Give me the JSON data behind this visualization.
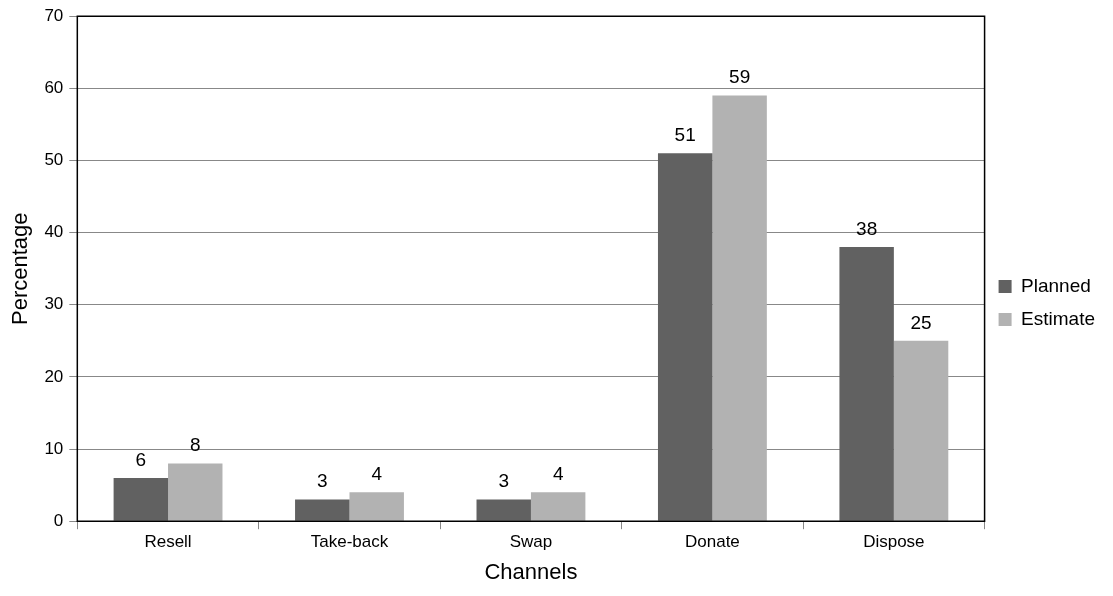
{
  "chart_data": {
    "type": "bar",
    "xlabel": "Channels",
    "ylabel": "Percentage",
    "categories": [
      "Resell",
      "Take-back",
      "Swap",
      "Donate",
      "Dispose"
    ],
    "series": [
      {
        "name": "Planned",
        "color": "#616161",
        "values": [
          6,
          3,
          3,
          51,
          38
        ]
      },
      {
        "name": "Estimate",
        "color": "#b2b2b2",
        "values": [
          8,
          4,
          4,
          59,
          25
        ]
      }
    ],
    "ylim": [
      0,
      70
    ],
    "yticks": [
      0,
      10,
      20,
      30,
      40,
      50,
      60,
      70
    ],
    "grid": "y",
    "legend": "right",
    "data_labels": true
  }
}
